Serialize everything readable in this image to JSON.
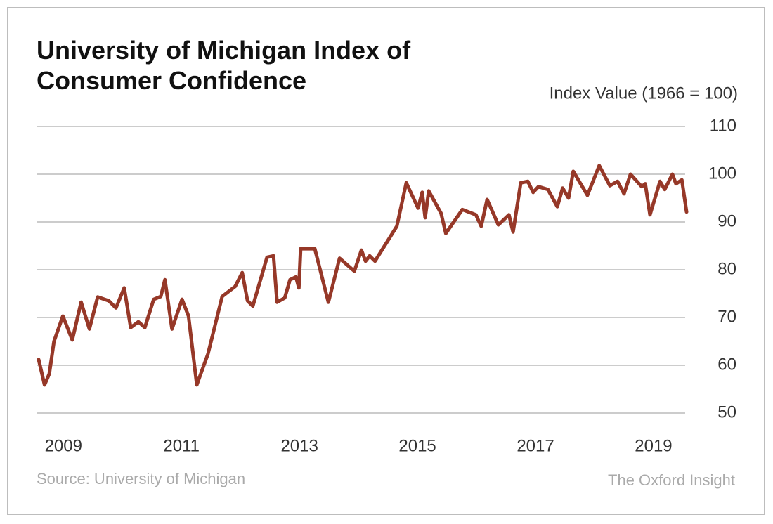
{
  "chart_data": {
    "type": "line",
    "title": "University of Michigan Index of Consumer Confidence",
    "y_axis_label": "Index Value (1966 = 100)",
    "source": "Source: University of Michigan",
    "publisher": "The Oxford Insight",
    "xlim": [
      2008.58,
      2019.56
    ],
    "xticks": [
      2009,
      2011,
      2013,
      2015,
      2017,
      2019
    ],
    "ylim": [
      50,
      110
    ],
    "yticks": [
      50,
      60,
      70,
      80,
      90,
      100,
      110
    ],
    "grid": true,
    "series": [
      {
        "name": "Index of Consumer Confidence",
        "color": "#963828",
        "x": [
          2008.58,
          2008.68,
          2008.76,
          2008.84,
          2008.99,
          2009.15,
          2009.3,
          2009.44,
          2009.58,
          2009.77,
          2009.89,
          2010.03,
          2010.14,
          2010.27,
          2010.38,
          2010.53,
          2010.65,
          2010.72,
          2010.84,
          2011.01,
          2011.12,
          2011.26,
          2011.45,
          2011.69,
          2011.91,
          2012.03,
          2012.12,
          2012.21,
          2012.45,
          2012.56,
          2012.62,
          2012.75,
          2012.84,
          2012.94,
          2012.99,
          2013.02,
          2013.26,
          2013.49,
          2013.68,
          2013.93,
          2014.05,
          2014.12,
          2014.19,
          2014.28,
          2014.65,
          2014.81,
          2015.01,
          2015.08,
          2015.13,
          2015.19,
          2015.4,
          2015.48,
          2015.76,
          2015.99,
          2016.08,
          2016.18,
          2016.37,
          2016.55,
          2016.62,
          2016.75,
          2016.87,
          2016.96,
          2017.05,
          2017.21,
          2017.37,
          2017.46,
          2017.56,
          2017.64,
          2017.88,
          2018.08,
          2018.26,
          2018.39,
          2018.5,
          2018.61,
          2018.8,
          2018.86,
          2018.94,
          2019.11,
          2019.19,
          2019.32,
          2019.38,
          2019.48,
          2019.56
        ],
        "values": [
          61.2,
          55.9,
          58.2,
          65,
          70.3,
          65.3,
          73.2,
          67.6,
          74.3,
          73.5,
          72,
          76.2,
          67.9,
          69.1,
          67.9,
          73.8,
          74.4,
          77.9,
          67.6,
          73.8,
          70.3,
          55.9,
          62.4,
          74.4,
          76.5,
          79.4,
          73.5,
          72.4,
          82.6,
          82.9,
          73.2,
          74.1,
          77.9,
          78.5,
          76.2,
          84.4,
          84.4,
          73.2,
          82.4,
          79.7,
          84.1,
          81.8,
          82.9,
          81.8,
          89.1,
          98.2,
          92.9,
          96.2,
          90.9,
          96.5,
          91.8,
          87.6,
          92.6,
          91.5,
          89.1,
          94.7,
          89.4,
          91.5,
          87.9,
          98.2,
          98.5,
          96.2,
          97.4,
          96.8,
          93.2,
          97.1,
          95,
          100.6,
          95.6,
          101.8,
          97.6,
          98.5,
          95.9,
          100,
          97.4,
          98,
          91.5,
          98.5,
          96.8,
          100,
          98,
          98.8,
          92.1
        ]
      }
    ]
  }
}
